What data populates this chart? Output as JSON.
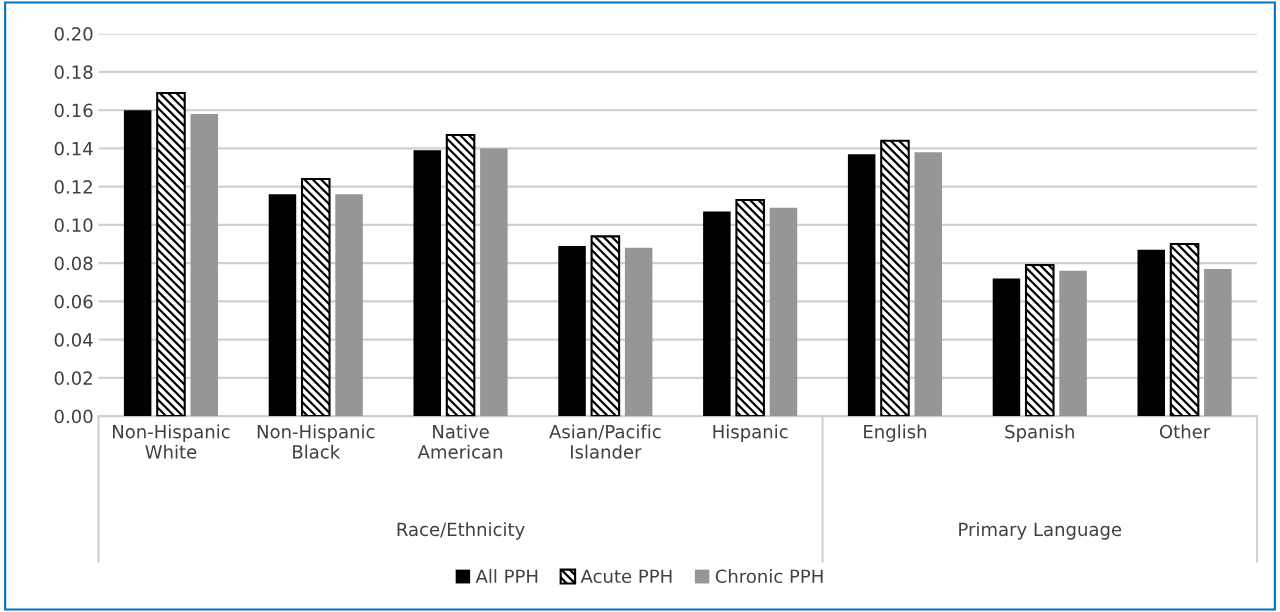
{
  "chart_data": {
    "type": "bar",
    "categories": [
      "Non-Hispanic\nWhite",
      "Non-Hispanic\nBlack",
      "Native\nAmerican",
      "Asian/Pacific\nIslander",
      "Hispanic",
      "English",
      "Spanish",
      "Other"
    ],
    "series": [
      {
        "name": "All PPH",
        "color": "#000000",
        "values": [
          0.16,
          0.116,
          0.139,
          0.089,
          0.107,
          0.137,
          0.072,
          0.087
        ]
      },
      {
        "name": "Acute PPH",
        "color": "#000000",
        "values": [
          0.169,
          0.124,
          0.147,
          0.094,
          0.113,
          0.144,
          0.079,
          0.09
        ]
      },
      {
        "name": "Chronic PPH",
        "color": "#969696",
        "values": [
          0.158,
          0.116,
          0.14,
          0.088,
          0.109,
          0.138,
          0.076,
          0.077
        ]
      }
    ],
    "annotations": [
      "Race/Ethnicity",
      "Primary Language"
    ],
    "ylim": [
      0,
      0.2
    ],
    "yticks": [
      {
        "value": 0,
        "label": "0.00"
      },
      {
        "value": 0.02,
        "label": "0.02"
      },
      {
        "value": 0.04,
        "label": "0.04"
      },
      {
        "value": 0.06,
        "label": "0.06"
      },
      {
        "value": 0.08,
        "label": "0.08"
      },
      {
        "value": 0.1,
        "label": "0.10"
      },
      {
        "value": 0.12,
        "label": "0.12"
      },
      {
        "value": 0.14,
        "label": "0.14"
      },
      {
        "value": 0.16,
        "label": "0.16"
      },
      {
        "value": 0.18,
        "label": "0.18"
      },
      {
        "value": 0.2,
        "label": "0.20"
      }
    ],
    "grid": "y",
    "legend": "bottom"
  }
}
